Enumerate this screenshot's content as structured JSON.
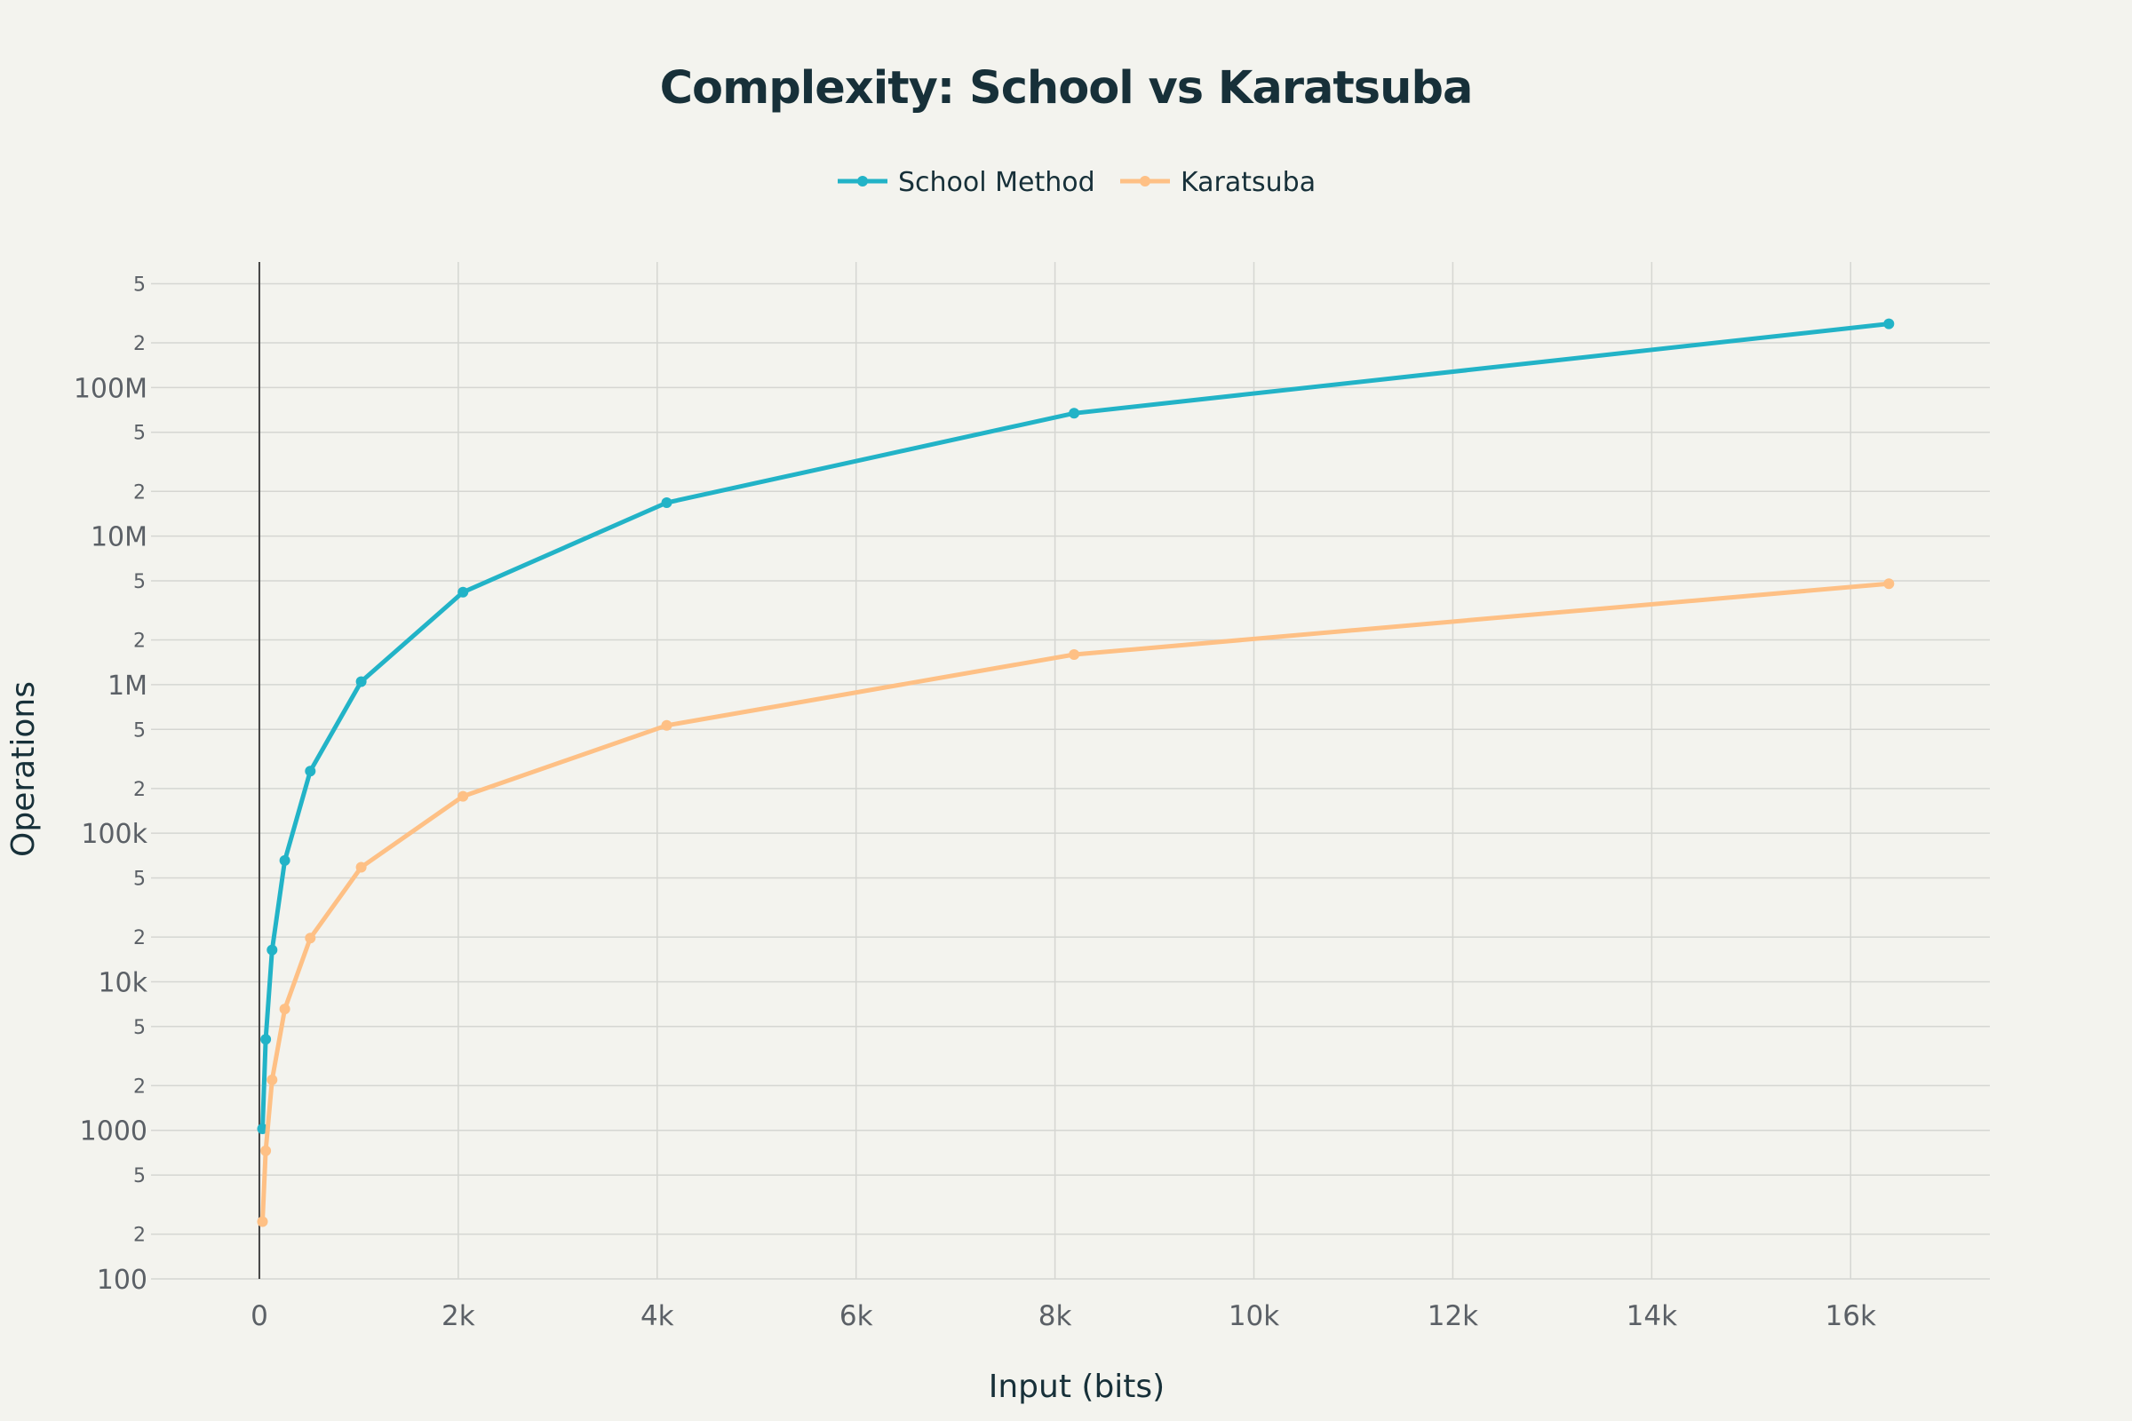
{
  "chart_data": {
    "type": "line",
    "title": "Complexity: School vs Karatsuba",
    "xlabel": "Input (bits)",
    "ylabel": "Operations",
    "x": [
      32,
      64,
      128,
      256,
      512,
      1024,
      2048,
      4096,
      8192,
      16384
    ],
    "series": [
      {
        "name": "School Method",
        "color": "#22b3c7",
        "values": [
          1024,
          4096,
          16384,
          65536,
          262144,
          1048576,
          4194304,
          16777216,
          67108864,
          268435456
        ]
      },
      {
        "name": "Karatsuba",
        "color": "#fec085",
        "values": [
          243,
          729,
          2187,
          6561,
          19683,
          59049,
          177147,
          531441,
          1594323,
          4782969
        ]
      }
    ],
    "xlim": [
      -1000,
      17400
    ],
    "ylim": [
      100,
      700000000
    ],
    "yscale": "log",
    "x_ticks": [
      {
        "value": 0,
        "label": "0"
      },
      {
        "value": 2000,
        "label": "2k"
      },
      {
        "value": 4000,
        "label": "4k"
      },
      {
        "value": 6000,
        "label": "6k"
      },
      {
        "value": 8000,
        "label": "8k"
      },
      {
        "value": 10000,
        "label": "10k"
      },
      {
        "value": 12000,
        "label": "12k"
      },
      {
        "value": 14000,
        "label": "14k"
      },
      {
        "value": 16000,
        "label": "16k"
      }
    ],
    "y_major_ticks": [
      {
        "value": 100,
        "label": "100"
      },
      {
        "value": 1000,
        "label": "1000"
      },
      {
        "value": 10000,
        "label": "10k"
      },
      {
        "value": 100000,
        "label": "100k"
      },
      {
        "value": 1000000,
        "label": "1M"
      },
      {
        "value": 10000000,
        "label": "10M"
      },
      {
        "value": 100000000,
        "label": "100M"
      }
    ],
    "y_minor_ticks": [
      {
        "value": 200,
        "label": "2"
      },
      {
        "value": 500,
        "label": "5"
      },
      {
        "value": 2000,
        "label": "2"
      },
      {
        "value": 5000,
        "label": "5"
      },
      {
        "value": 20000,
        "label": "2"
      },
      {
        "value": 50000,
        "label": "5"
      },
      {
        "value": 200000,
        "label": "2"
      },
      {
        "value": 500000,
        "label": "5"
      },
      {
        "value": 2000000,
        "label": "2"
      },
      {
        "value": 5000000,
        "label": "5"
      },
      {
        "value": 20000000,
        "label": "2"
      },
      {
        "value": 50000000,
        "label": "5"
      },
      {
        "value": 200000000,
        "label": "2"
      },
      {
        "value": 500000000,
        "label": "5"
      }
    ],
    "grid": true,
    "legend_position": "top-center",
    "background": "#f3f3ee",
    "grid_color": "#d5d6d2"
  }
}
